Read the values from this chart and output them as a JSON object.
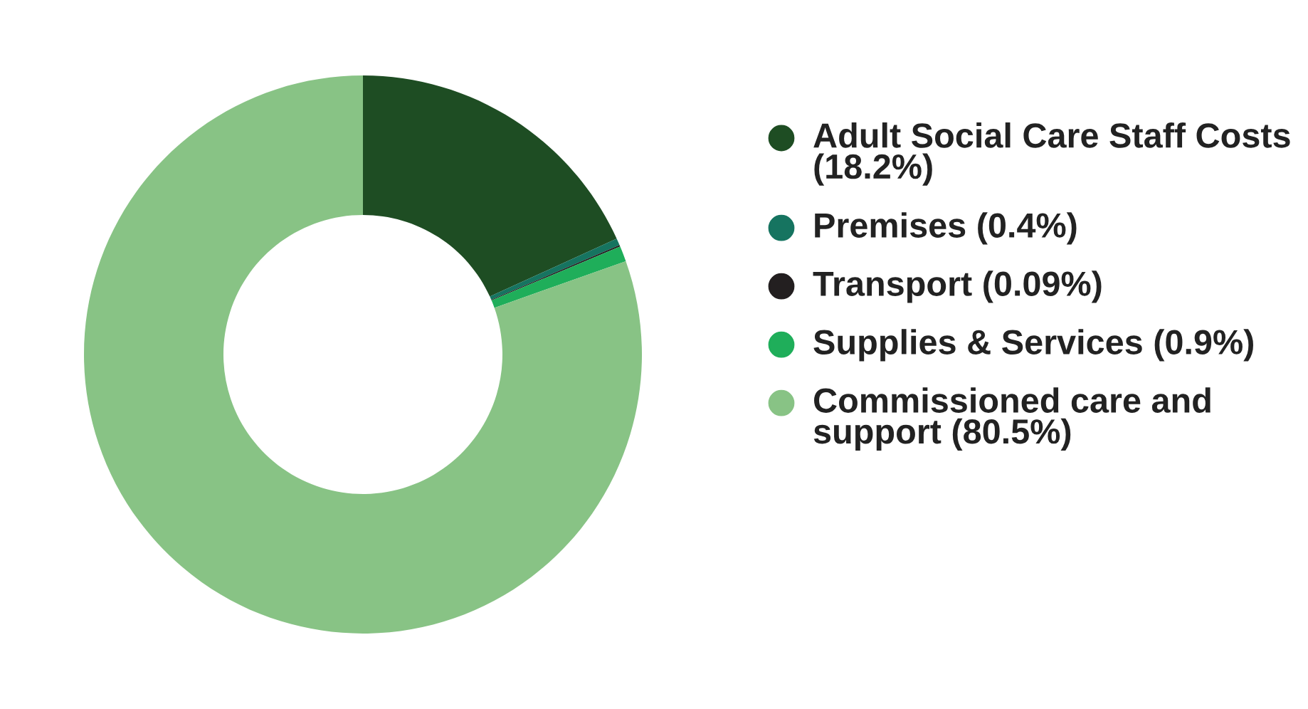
{
  "chart_data": {
    "type": "donut",
    "categories": [
      "Adult Social Care Staff Costs (18.2%)",
      "Premises (0.4%)",
      "Transport (0.09%)",
      "Supplies & Services (0.9%)",
      "Commissioned care and support (80.5%)"
    ],
    "values": [
      18.2,
      0.4,
      0.09,
      0.9,
      80.5
    ],
    "colors": [
      "#1e4d23",
      "#167460",
      "#231f20",
      "#1fae5a",
      "#88c385"
    ],
    "legend": "right"
  }
}
